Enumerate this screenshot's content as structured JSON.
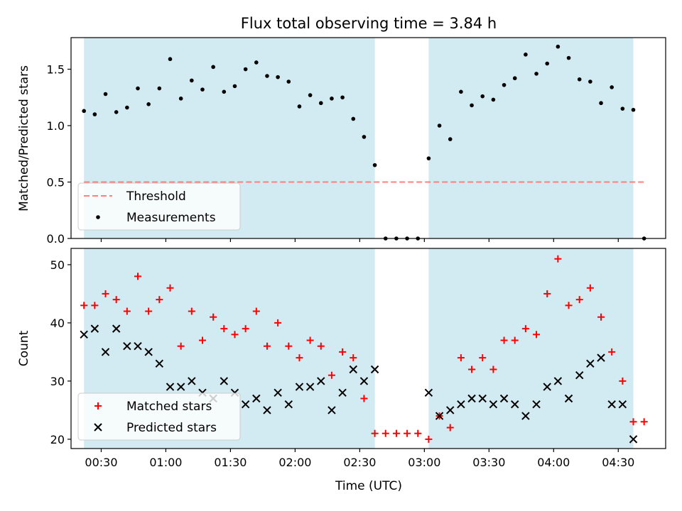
{
  "chart_data": [
    {
      "type": "scatter",
      "title": "Flux total observing time = 3.84 h",
      "xlabel": "",
      "ylabel": "Matched/Predicted stars",
      "xlim": [
        "00:16",
        "04:52"
      ],
      "ylim": [
        0,
        1.78
      ],
      "y_ticks": [
        "0.0",
        "0.5",
        "1.0",
        "1.5"
      ],
      "x_ticks": [
        "00:30",
        "01:00",
        "01:30",
        "02:00",
        "02:30",
        "03:00",
        "03:30",
        "04:00",
        "04:30"
      ],
      "shaded_intervals": [
        [
          "00:22",
          "02:37"
        ],
        [
          "03:02",
          "04:37"
        ]
      ],
      "threshold": 0.5,
      "threshold_span": [
        "00:22",
        "04:42"
      ],
      "legend": {
        "position": "lower-left",
        "entries": [
          "Threshold",
          "Measurements"
        ]
      },
      "series": [
        {
          "name": "Measurements",
          "x": [
            "00:22",
            "00:27",
            "00:32",
            "00:37",
            "00:42",
            "00:47",
            "00:52",
            "00:57",
            "01:02",
            "01:07",
            "01:12",
            "01:17",
            "01:22",
            "01:27",
            "01:32",
            "01:37",
            "01:42",
            "01:47",
            "01:52",
            "01:57",
            "02:02",
            "02:07",
            "02:12",
            "02:17",
            "02:22",
            "02:27",
            "02:32",
            "02:37",
            "02:42",
            "02:47",
            "02:52",
            "02:57",
            "03:02",
            "03:07",
            "03:12",
            "03:17",
            "03:22",
            "03:27",
            "03:32",
            "03:37",
            "03:42",
            "03:47",
            "03:52",
            "03:57",
            "04:02",
            "04:07",
            "04:12",
            "04:17",
            "04:22",
            "04:27",
            "04:32",
            "04:37",
            "04:42"
          ],
          "values": [
            1.13,
            1.1,
            1.28,
            1.12,
            1.16,
            1.33,
            1.19,
            1.33,
            1.59,
            1.24,
            1.4,
            1.32,
            1.52,
            1.3,
            1.35,
            1.5,
            1.56,
            1.44,
            1.43,
            1.39,
            1.17,
            1.27,
            1.2,
            1.24,
            1.25,
            1.06,
            0.9,
            0.65,
            0,
            0,
            0,
            0,
            0.71,
            1.0,
            0.88,
            1.3,
            1.18,
            1.26,
            1.23,
            1.36,
            1.42,
            1.63,
            1.46,
            1.55,
            1.7,
            1.6,
            1.41,
            1.39,
            1.2,
            1.34,
            1.15,
            1.14,
            0
          ]
        }
      ]
    },
    {
      "type": "scatter",
      "title": "",
      "xlabel": "Time (UTC)",
      "ylabel": "Count",
      "xlim": [
        "00:16",
        "04:52"
      ],
      "ylim": [
        18.4,
        52.8
      ],
      "y_ticks": [
        "20",
        "30",
        "40",
        "50"
      ],
      "x_ticks": [
        "00:30",
        "01:00",
        "01:30",
        "02:00",
        "02:30",
        "03:00",
        "03:30",
        "04:00",
        "04:30"
      ],
      "shaded_intervals": [
        [
          "00:22",
          "02:37"
        ],
        [
          "03:02",
          "04:37"
        ]
      ],
      "legend": {
        "position": "lower-left",
        "entries": [
          "Matched stars",
          "Predicted stars"
        ]
      },
      "series": [
        {
          "name": "Matched stars",
          "x": [
            "00:22",
            "00:27",
            "00:32",
            "00:37",
            "00:42",
            "00:47",
            "00:52",
            "00:57",
            "01:02",
            "01:07",
            "01:12",
            "01:17",
            "01:22",
            "01:27",
            "01:32",
            "01:37",
            "01:42",
            "01:47",
            "01:52",
            "01:57",
            "02:02",
            "02:07",
            "02:12",
            "02:17",
            "02:22",
            "02:27",
            "02:32",
            "02:37",
            "02:42",
            "02:47",
            "02:52",
            "02:57",
            "03:02",
            "03:07",
            "03:12",
            "03:17",
            "03:22",
            "03:27",
            "03:32",
            "03:37",
            "03:42",
            "03:47",
            "03:52",
            "03:57",
            "04:02",
            "04:07",
            "04:12",
            "04:17",
            "04:22",
            "04:27",
            "04:32",
            "04:37",
            "04:42"
          ],
          "values": [
            43,
            43,
            45,
            44,
            42,
            48,
            42,
            44,
            46,
            36,
            42,
            37,
            41,
            39,
            38,
            39,
            42,
            36,
            40,
            36,
            34,
            37,
            36,
            31,
            35,
            34,
            27,
            21,
            21,
            21,
            21,
            21,
            20,
            24,
            22,
            34,
            32,
            34,
            32,
            37,
            37,
            39,
            38,
            45,
            51,
            43,
            44,
            46,
            41,
            35,
            30,
            23,
            23
          ]
        },
        {
          "name": "Predicted stars",
          "x": [
            "00:22",
            "00:27",
            "00:32",
            "00:37",
            "00:42",
            "00:47",
            "00:52",
            "00:57",
            "01:02",
            "01:07",
            "01:12",
            "01:17",
            "01:22",
            "01:27",
            "01:32",
            "01:37",
            "01:42",
            "01:47",
            "01:52",
            "01:57",
            "02:02",
            "02:07",
            "02:12",
            "02:17",
            "02:22",
            "02:27",
            "02:32",
            "02:37",
            "03:02",
            "03:07",
            "03:12",
            "03:17",
            "03:22",
            "03:27",
            "03:32",
            "03:37",
            "03:42",
            "03:47",
            "03:52",
            "03:57",
            "04:02",
            "04:07",
            "04:12",
            "04:17",
            "04:22",
            "04:27",
            "04:32",
            "04:37"
          ],
          "values": [
            38,
            39,
            35,
            39,
            36,
            36,
            35,
            33,
            29,
            29,
            30,
            28,
            27,
            30,
            28,
            26,
            27,
            25,
            28,
            26,
            29,
            29,
            30,
            25,
            28,
            32,
            30,
            32,
            28,
            24,
            25,
            26,
            27,
            27,
            26,
            27,
            26,
            24,
            26,
            29,
            30,
            27,
            31,
            33,
            34,
            26,
            26,
            20
          ]
        }
      ]
    }
  ],
  "colors": {
    "shade": "#add8e6",
    "threshold": "#ff7f7f",
    "measurements": "#000000",
    "matched": "#ff0000",
    "predicted": "#000000"
  }
}
